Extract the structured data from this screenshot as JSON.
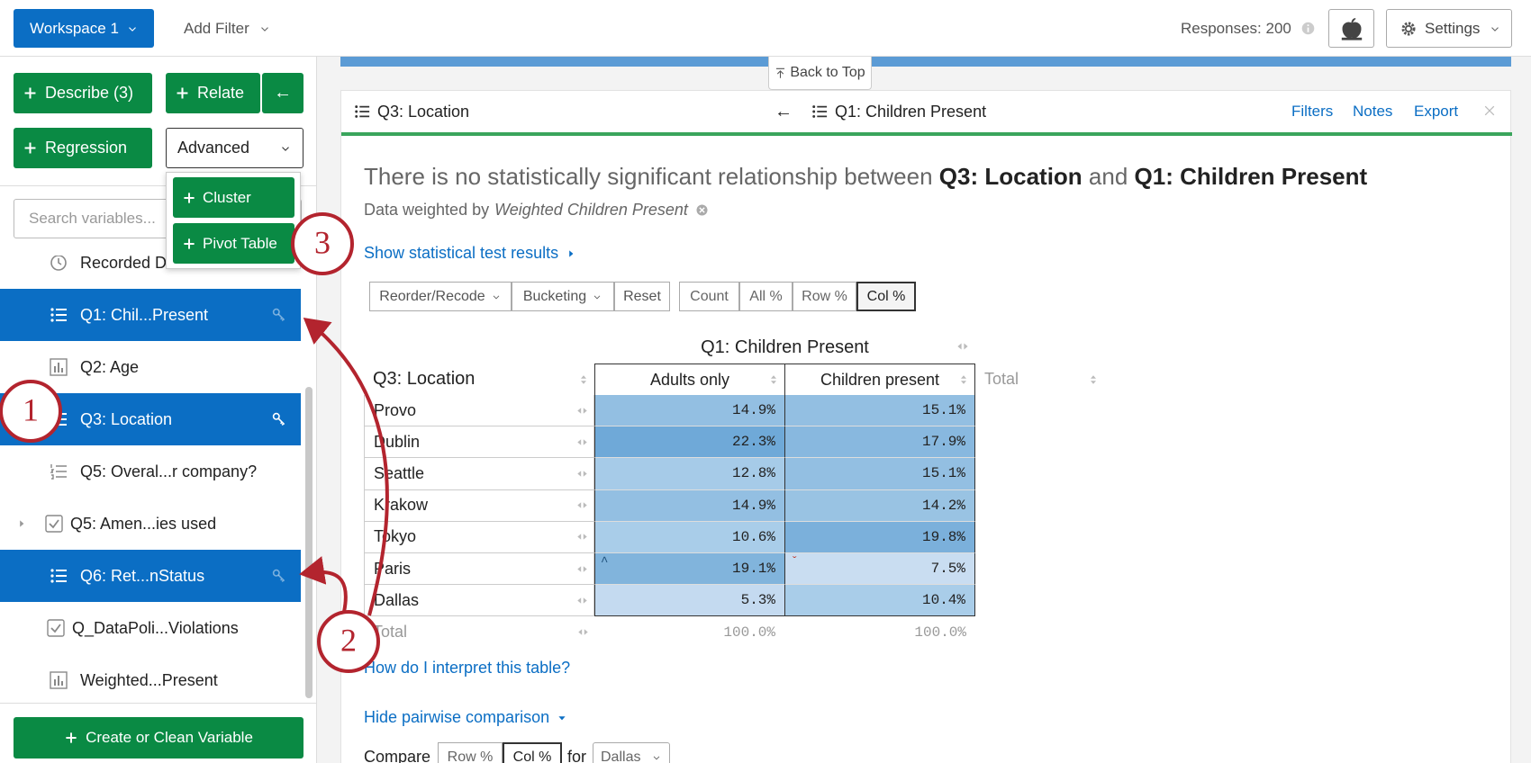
{
  "toolbar": {
    "workspace": "Workspace 1",
    "add_filter": "Add Filter",
    "responses": "Responses: 200",
    "settings": "Settings"
  },
  "sidebar": {
    "describe": "Describe (3)",
    "relate": "Relate",
    "back": "←",
    "regression": "Regression",
    "advanced": "Advanced",
    "advanced_menu": [
      "Cluster",
      "Pivot Table"
    ],
    "search_placeholder": "Search variables...",
    "variables": [
      {
        "label": "Recorded D",
        "icon": "clock"
      },
      {
        "label": "Q1: Chil...Present",
        "icon": "list",
        "selected": true
      },
      {
        "label": "Q2: Age",
        "icon": "bars"
      },
      {
        "label": "Q3: Location",
        "icon": "list",
        "selected": true
      },
      {
        "label": "Q5: Overal...r company?",
        "icon": "numbered"
      },
      {
        "label": "Q5: Amen...ies used",
        "icon": "check",
        "expandable": true
      },
      {
        "label": "Q6: Ret...nStatus",
        "icon": "list",
        "selected": true
      },
      {
        "label": "Q_DataPoli...Violations",
        "icon": "check"
      },
      {
        "label": "Weighted...Present",
        "icon": "bars"
      }
    ],
    "create": "Create or Clean Variable"
  },
  "callouts": [
    "1",
    "2",
    "3"
  ],
  "back_to_top": "Back to Top",
  "card": {
    "left": "Q3: Location",
    "arrow": "←",
    "right": "Q1: Children Present",
    "links": [
      "Filters",
      "Notes",
      "Export"
    ],
    "headline": {
      "text1": "There is no statistically significant relationship between",
      "var1": "Q3: Location",
      "text2": "and",
      "var2": "Q1: Children Present"
    },
    "weighted_prefix": "Data weighted by",
    "weighted_name": "Weighted Children Present",
    "show_tests": "Show statistical test results",
    "controls": [
      "Reorder/Recode",
      "Bucketing",
      "Reset"
    ],
    "modes": [
      "Count",
      "All %",
      "Row %",
      "Col %"
    ],
    "table": {
      "column_group": "Q1: Children Present",
      "row_header": "Q3: Location",
      "columns": [
        "Adults only",
        "Children present",
        "Total"
      ],
      "rows": [
        {
          "label": "Provo",
          "values": [
            "14.9%",
            "15.1%"
          ],
          "shades": [
            "#93bfe2",
            "#93bfe2"
          ]
        },
        {
          "label": "Dublin",
          "values": [
            "22.3%",
            "17.9%"
          ],
          "shades": [
            "#6fa9d8",
            "#88b8df"
          ]
        },
        {
          "label": "Seattle",
          "values": [
            "12.8%",
            "15.1%"
          ],
          "shades": [
            "#a6cbe8",
            "#93bfe2"
          ]
        },
        {
          "label": "Krakow",
          "values": [
            "14.9%",
            "14.2%"
          ],
          "shades": [
            "#93bfe2",
            "#99c3e3"
          ]
        },
        {
          "label": "Tokyo",
          "values": [
            "10.6%",
            "19.8%"
          ],
          "shades": [
            "#a9cde9",
            "#7bb0db"
          ]
        },
        {
          "label": "Paris",
          "values": [
            "19.1%",
            "7.5%"
          ],
          "shades": [
            "#81b4dc",
            "#c9ddf1"
          ],
          "markers": [
            "^",
            "ˇ"
          ]
        },
        {
          "label": "Dallas",
          "values": [
            "5.3%",
            "10.4%"
          ],
          "shades": [
            "#c4daf0",
            "#a9cde9"
          ]
        }
      ],
      "total": {
        "label": "Total",
        "values": [
          "100.0%",
          "100.0%"
        ]
      }
    },
    "interpret": "How do I interpret this table?",
    "pairwise": "Hide pairwise comparison",
    "compare": {
      "label": "Compare",
      "modes": [
        "Row %",
        "Col %"
      ],
      "for": "for",
      "target": "Dallas"
    }
  }
}
